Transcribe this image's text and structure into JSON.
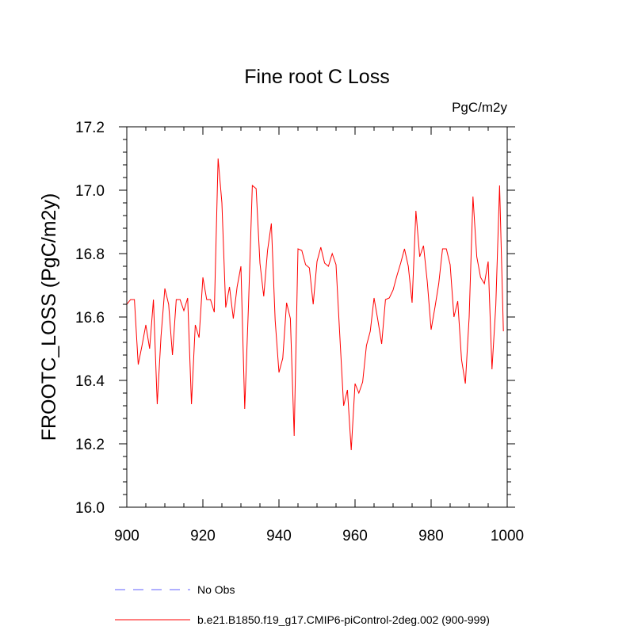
{
  "chart_data": {
    "type": "line",
    "title": "Fine root C Loss",
    "units": "PgC/m2y",
    "xlabel": "",
    "ylabel": "FROOTC_LOSS  (PgC/m2y)",
    "xlim": [
      900,
      1000
    ],
    "ylim": [
      16.0,
      17.2
    ],
    "xticks": [
      900,
      920,
      940,
      960,
      980,
      1000
    ],
    "xtick_labels": [
      "900",
      "920",
      "940",
      "960",
      "980",
      "1000"
    ],
    "yticks": [
      16.0,
      16.2,
      16.4,
      16.6,
      16.8,
      17.0,
      17.2
    ],
    "ytick_labels": [
      "16.0",
      "16.2",
      "16.4",
      "16.6",
      "16.8",
      "17.0",
      "17.2"
    ],
    "grid": false,
    "series": [
      {
        "name": "b.e21.B1850.f19_g17.CMIP6-piControl-2deg.002 (900-999)",
        "color": "#ff0000",
        "style": "solid",
        "x": [
          900,
          901,
          902,
          903,
          904,
          905,
          906,
          907,
          908,
          909,
          910,
          911,
          912,
          913,
          914,
          915,
          916,
          917,
          918,
          919,
          920,
          921,
          922,
          923,
          924,
          925,
          926,
          927,
          928,
          929,
          930,
          931,
          932,
          933,
          934,
          935,
          936,
          937,
          938,
          939,
          940,
          941,
          942,
          943,
          944,
          945,
          946,
          947,
          948,
          949,
          950,
          951,
          952,
          953,
          954,
          955,
          956,
          957,
          958,
          959,
          960,
          961,
          962,
          963,
          964,
          965,
          966,
          967,
          968,
          969,
          970,
          971,
          972,
          973,
          974,
          975,
          976,
          977,
          978,
          979,
          980,
          981,
          982,
          983,
          984,
          985,
          986,
          987,
          988,
          989,
          990,
          991,
          992,
          993,
          994,
          995,
          996,
          997,
          998,
          999
        ],
        "values": [
          16.64,
          16.655,
          16.655,
          16.45,
          16.51,
          16.575,
          16.5,
          16.655,
          16.325,
          16.54,
          16.69,
          16.64,
          16.48,
          16.655,
          16.655,
          16.62,
          16.66,
          16.325,
          16.575,
          16.535,
          16.725,
          16.655,
          16.655,
          16.615,
          17.1,
          16.96,
          16.63,
          16.695,
          16.595,
          16.695,
          16.76,
          16.31,
          16.64,
          17.015,
          17.005,
          16.77,
          16.665,
          16.81,
          16.895,
          16.59,
          16.425,
          16.47,
          16.645,
          16.595,
          16.225,
          16.815,
          16.81,
          16.765,
          16.755,
          16.64,
          16.775,
          16.82,
          16.77,
          16.76,
          16.8,
          16.765,
          16.54,
          16.32,
          16.37,
          16.18,
          16.39,
          16.36,
          16.395,
          16.51,
          16.555,
          16.66,
          16.59,
          16.515,
          16.655,
          16.66,
          16.685,
          16.73,
          16.77,
          16.815,
          16.76,
          16.645,
          16.935,
          16.79,
          16.825,
          16.71,
          16.56,
          16.63,
          16.705,
          16.815,
          16.815,
          16.765,
          16.6,
          16.65,
          16.465,
          16.39,
          16.6,
          16.98,
          16.79,
          16.725,
          16.705,
          16.775,
          16.435,
          16.635,
          17.015,
          16.555
        ]
      }
    ],
    "legend": [
      {
        "label": "No Obs",
        "color": "#6060ff",
        "style": "dashed"
      },
      {
        "label": "b.e21.B1850.f19_g17.CMIP6-piControl-2deg.002 (900-999)",
        "color": "#ff0000",
        "style": "solid"
      }
    ]
  }
}
